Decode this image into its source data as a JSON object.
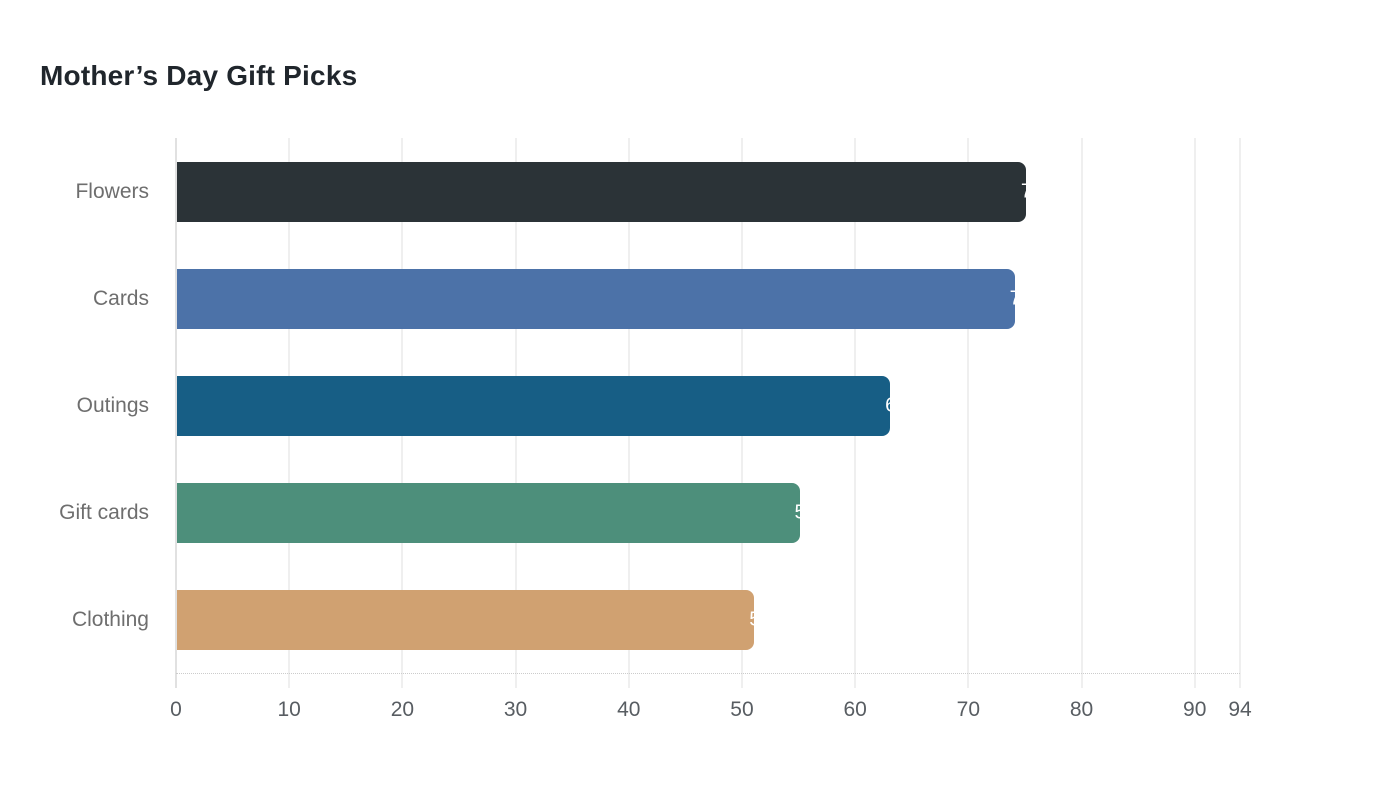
{
  "page": {
    "background": "#ffffff"
  },
  "chart_data": {
    "type": "bar",
    "orientation": "horizontal",
    "title": "Mother’s Day Gift Picks",
    "categories": [
      "Flowers",
      "Cards",
      "Outings",
      "Gift cards",
      "Clothing"
    ],
    "values": [
      75,
      74,
      63,
      55,
      51
    ],
    "bar_colors": [
      "#2b3337",
      "#4c72a8",
      "#175e85",
      "#4d8f7b",
      "#d0a171"
    ],
    "value_label_color": "#ffffff",
    "xlabel": "",
    "ylabel": "",
    "xlim": [
      0,
      94
    ],
    "x_ticks": [
      0,
      10,
      20,
      30,
      40,
      50,
      60,
      70,
      80,
      90,
      94
    ],
    "grid": "vertical-gridlines-on",
    "legend_position": "none",
    "axis_line_color": "#e1e1e1",
    "gridline_color": "#efefef",
    "category_label_color": "#6e6e6e",
    "tick_label_color": "#585d62"
  }
}
